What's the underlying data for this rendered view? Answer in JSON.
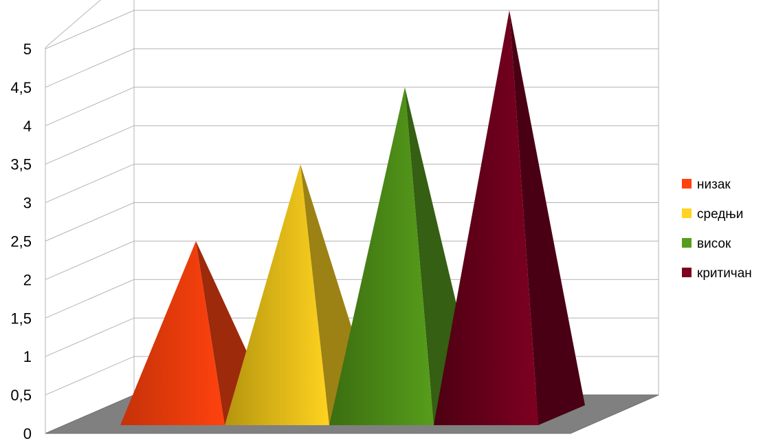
{
  "chart_data": {
    "type": "bar",
    "style": "3d-pyramid",
    "categories": [
      "низак",
      "средњи",
      "висок",
      "критичан"
    ],
    "values": [
      2,
      3,
      4,
      5
    ],
    "ylim": [
      0,
      5
    ],
    "ytick_labels": [
      "0",
      "0,5",
      "1",
      "1,5",
      "2",
      "2,5",
      "3",
      "3,5",
      "4",
      "4,5",
      "5"
    ],
    "grid": true,
    "legend_position": "right",
    "legend": [
      {
        "label": "низак",
        "color": "#ff420e"
      },
      {
        "label": "средњи",
        "color": "#ffd320"
      },
      {
        "label": "висок",
        "color": "#579d1c"
      },
      {
        "label": "критичан",
        "color": "#7e0021"
      }
    ],
    "colors": {
      "низак": {
        "front": "#ff420e",
        "front_dark": "#c53208",
        "side": "#9c2a0b"
      },
      "средњи": {
        "front": "#ffd320",
        "front_dark": "#b5950e",
        "side": "#9c8214"
      },
      "висок": {
        "front": "#579d1c",
        "front_dark": "#3b6e10",
        "side": "#355f12"
      },
      "критичан": {
        "front": "#7e0021",
        "front_dark": "#4d0013",
        "side": "#4a0014"
      }
    },
    "floor_color": "#808080",
    "grid_color": "#b3b3b3"
  }
}
